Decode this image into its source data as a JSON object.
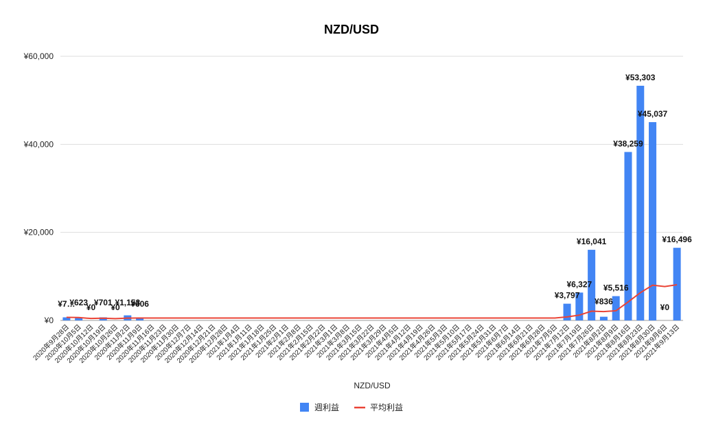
{
  "chart_data": {
    "type": "bar",
    "title": "NZD/USD",
    "xlabel": "NZD/USD",
    "ylabel": "",
    "ylim": [
      0,
      60000
    ],
    "yticks": [
      0,
      20000,
      40000,
      60000
    ],
    "ytick_labels": [
      "¥0",
      "¥20,000",
      "¥40,000",
      "¥60,000"
    ],
    "grid": true,
    "legend_position": "bottom",
    "colors": {
      "bar": "#4285f4",
      "line": "#ea4335"
    },
    "categories": [
      "2020年9月28日",
      "2020年10月5日",
      "2020年10月12日",
      "2020年10月19日",
      "2020年10月26日",
      "2020年11月2日",
      "2020年11月9日",
      "2020年11月16日",
      "2020年11月23日",
      "2020年11月30日",
      "2020年12月7日",
      "2020年12月14日",
      "2020年12月21日",
      "2020年12月28日",
      "2021年1月4日",
      "2021年1月11日",
      "2021年1月18日",
      "2021年1月25日",
      "2021年2月1日",
      "2021年2月8日",
      "2021年2月15日",
      "2021年2月22日",
      "2021年3月1日",
      "2021年3月8日",
      "2021年3月15日",
      "2021年3月22日",
      "2021年3月29日",
      "2021年4月5日",
      "2021年4月12日",
      "2021年4月19日",
      "2021年4月26日",
      "2021年5月3日",
      "2021年5月10日",
      "2021年5月17日",
      "2021年5月24日",
      "2021年5月31日",
      "2021年6月7日",
      "2021年6月14日",
      "2021年6月21日",
      "2021年6月28日",
      "2021年7月5日",
      "2021年7月12日",
      "2021年7月19日",
      "2021年7月26日",
      "2021年8月2日",
      "2021年8月9日",
      "2021年8月16日",
      "2021年8月23日",
      "2021年8月30日",
      "2021年9月6日",
      "2021年9月13日"
    ],
    "series": [
      {
        "name": "週利益",
        "type": "bar",
        "values": [
          700,
          623,
          0,
          701,
          0,
          1153,
          606,
          null,
          null,
          null,
          null,
          null,
          null,
          null,
          null,
          null,
          null,
          null,
          null,
          null,
          null,
          null,
          null,
          null,
          null,
          null,
          null,
          null,
          null,
          null,
          null,
          null,
          null,
          null,
          null,
          null,
          null,
          null,
          null,
          null,
          null,
          3797,
          6327,
          16041,
          836,
          5516,
          38259,
          53303,
          45037,
          0,
          16496
        ],
        "labels": [
          "¥7…",
          "¥623",
          "¥0",
          "¥701",
          "¥0",
          "¥1,153",
          "¥606",
          "",
          "",
          "",
          "",
          "",
          "",
          "",
          "",
          "",
          "",
          "",
          "",
          "",
          "",
          "",
          "",
          "",
          "",
          "",
          "",
          "",
          "",
          "",
          "",
          "",
          "",
          "",
          "",
          "",
          "",
          "",
          "",
          "",
          "",
          "¥3,797",
          "¥6,327",
          "¥16,041",
          "¥836",
          "¥5,516",
          "¥38,259",
          "¥53,303",
          "¥45,037",
          "¥0",
          "¥16,496"
        ]
      },
      {
        "name": "平均利益",
        "type": "line",
        "values": [
          700,
          661,
          441,
          506,
          405,
          530,
          545,
          545,
          545,
          545,
          545,
          545,
          545,
          545,
          545,
          545,
          545,
          545,
          545,
          545,
          545,
          545,
          545,
          545,
          545,
          545,
          545,
          545,
          545,
          545,
          545,
          545,
          545,
          545,
          545,
          545,
          545,
          545,
          545,
          545,
          545,
          800,
          1200,
          2100,
          2000,
          2200,
          4200,
          6300,
          8000,
          7700,
          8100
        ]
      }
    ]
  }
}
